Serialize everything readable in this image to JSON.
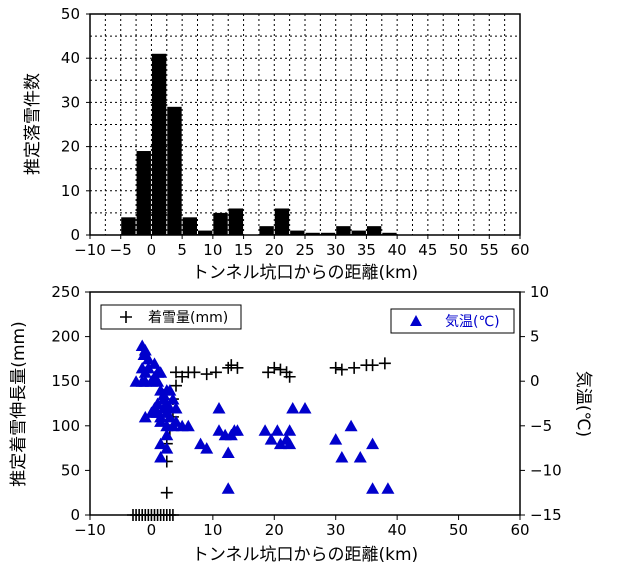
{
  "chart_data": [
    {
      "type": "bar",
      "xlabel": "トンネル坑口からの距離(km)",
      "ylabel": "推定落雪件数",
      "xlim": [
        -10,
        60
      ],
      "ylim": [
        0,
        50
      ],
      "xticks": [
        "−10",
        "−5",
        "0",
        "5",
        "10",
        "15",
        "20",
        "25",
        "30",
        "35",
        "40",
        "45",
        "50",
        "55",
        "60"
      ],
      "yticks": [
        "0",
        "10",
        "20",
        "30",
        "40",
        "50"
      ],
      "grid": true,
      "bin_width": 2.5,
      "bins": [
        {
          "x0": -5,
          "value": 4
        },
        {
          "x0": -2.5,
          "value": 19
        },
        {
          "x0": 0,
          "value": 41
        },
        {
          "x0": 2.5,
          "value": 29
        },
        {
          "x0": 5,
          "value": 4
        },
        {
          "x0": 7.5,
          "value": 1
        },
        {
          "x0": 10,
          "value": 5
        },
        {
          "x0": 12.5,
          "value": 6
        },
        {
          "x0": 15,
          "value": 0
        },
        {
          "x0": 17.5,
          "value": 2
        },
        {
          "x0": 20,
          "value": 6
        },
        {
          "x0": 22.5,
          "value": 1
        },
        {
          "x0": 25,
          "value": 0.5
        },
        {
          "x0": 27.5,
          "value": 0.5
        },
        {
          "x0": 30,
          "value": 2
        },
        {
          "x0": 32.5,
          "value": 1
        },
        {
          "x0": 35,
          "value": 2
        },
        {
          "x0": 37.5,
          "value": 0.5
        }
      ]
    },
    {
      "type": "scatter",
      "xlabel": "トンネル坑口からの距離(km)",
      "ylabel": "推定着雪伸長量(mm)",
      "y2label": "気温(℃)",
      "xlim": [
        -10,
        60
      ],
      "ylim": [
        0,
        250
      ],
      "y2lim": [
        -15,
        10
      ],
      "xticks": [
        "−10",
        "0",
        "10",
        "20",
        "30",
        "40",
        "50",
        "60"
      ],
      "yticks": [
        "0",
        "50",
        "100",
        "150",
        "200",
        "250"
      ],
      "y2ticks": [
        "−15",
        "−10",
        "−5",
        "0",
        "5",
        "10"
      ],
      "grid": false,
      "series": [
        {
          "name": "着雪量(mm)",
          "marker": "plus",
          "color": "#000000",
          "axis": "left",
          "legend_position": "top-left",
          "points": [
            [
              -3,
              0
            ],
            [
              -2.5,
              0
            ],
            [
              -2,
              0
            ],
            [
              -1.5,
              0
            ],
            [
              -1,
              0
            ],
            [
              -0.5,
              0
            ],
            [
              0,
              0
            ],
            [
              0.5,
              0
            ],
            [
              1,
              0
            ],
            [
              1.5,
              0
            ],
            [
              2,
              0
            ],
            [
              2.5,
              0
            ],
            [
              3,
              0
            ],
            [
              3.5,
              0
            ],
            [
              2.5,
              25
            ],
            [
              2.5,
              60
            ],
            [
              2.5,
              80
            ],
            [
              3,
              95
            ],
            [
              3.5,
              110
            ],
            [
              3.5,
              130
            ],
            [
              4,
              145
            ],
            [
              4,
              160
            ],
            [
              5,
              155
            ],
            [
              6,
              160
            ],
            [
              7,
              160
            ],
            [
              9,
              158
            ],
            [
              10.5,
              160
            ],
            [
              12.5,
              165
            ],
            [
              13,
              168
            ],
            [
              14,
              165
            ],
            [
              19,
              160
            ],
            [
              20,
              165
            ],
            [
              21,
              163
            ],
            [
              22,
              160
            ],
            [
              22.5,
              155
            ],
            [
              30,
              165
            ],
            [
              31,
              163
            ],
            [
              33,
              165
            ],
            [
              35,
              168
            ],
            [
              36,
              168
            ],
            [
              38,
              170
            ]
          ]
        },
        {
          "name": "気温(℃)",
          "marker": "triangle",
          "color": "#0000cc",
          "axis": "right",
          "legend_position": "top-right",
          "points": [
            [
              -1.5,
              4
            ],
            [
              -1,
              3.5
            ],
            [
              -1.2,
              3
            ],
            [
              -0.5,
              2.5
            ],
            [
              -1.5,
              1.5
            ],
            [
              -1,
              1
            ],
            [
              -0.5,
              1.5
            ],
            [
              0.5,
              2
            ],
            [
              1,
              1
            ],
            [
              1.5,
              1
            ],
            [
              -2.5,
              0
            ],
            [
              -1.5,
              0
            ],
            [
              -1,
              0
            ],
            [
              0,
              0
            ],
            [
              0.5,
              0.5
            ],
            [
              1,
              0
            ],
            [
              1.5,
              -1
            ],
            [
              2,
              -1.5
            ],
            [
              2.5,
              -1
            ],
            [
              3,
              -1
            ],
            [
              2,
              -2
            ],
            [
              3.5,
              -2
            ],
            [
              -1,
              -4
            ],
            [
              0,
              -3.5
            ],
            [
              1,
              -3.5
            ],
            [
              1.5,
              -4
            ],
            [
              2.5,
              -3.5
            ],
            [
              3,
              -4
            ],
            [
              0.5,
              -3
            ],
            [
              1,
              -2.5
            ],
            [
              2,
              -3
            ],
            [
              2.5,
              -2.5
            ],
            [
              3,
              -3
            ],
            [
              4,
              -3
            ],
            [
              1.5,
              -4.5
            ],
            [
              2.5,
              -5
            ],
            [
              3.5,
              -5
            ],
            [
              4,
              -4.5
            ],
            [
              5,
              -5
            ],
            [
              6,
              -5
            ],
            [
              2.5,
              -6
            ],
            [
              1.5,
              -7
            ],
            [
              2.5,
              -7.5
            ],
            [
              1.5,
              -8.5
            ],
            [
              8,
              -7
            ],
            [
              9,
              -7.5
            ],
            [
              11,
              -3
            ],
            [
              11,
              -5.5
            ],
            [
              12,
              -6
            ],
            [
              12.5,
              -8
            ],
            [
              12.5,
              -12
            ],
            [
              13,
              -6
            ],
            [
              13.5,
              -5.5
            ],
            [
              14,
              -5.5
            ],
            [
              18.5,
              -5.5
            ],
            [
              19.5,
              -6.5
            ],
            [
              20.5,
              -5.5
            ],
            [
              21,
              -7
            ],
            [
              22,
              -6.5
            ],
            [
              22.5,
              -5.5
            ],
            [
              22.5,
              -7
            ],
            [
              23,
              -3
            ],
            [
              25,
              -3
            ],
            [
              30,
              -6.5
            ],
            [
              31,
              -8.5
            ],
            [
              32.5,
              -5
            ],
            [
              34,
              -8.5
            ],
            [
              36,
              -7
            ],
            [
              36,
              -12
            ],
            [
              38.5,
              -12
            ]
          ]
        }
      ]
    }
  ]
}
